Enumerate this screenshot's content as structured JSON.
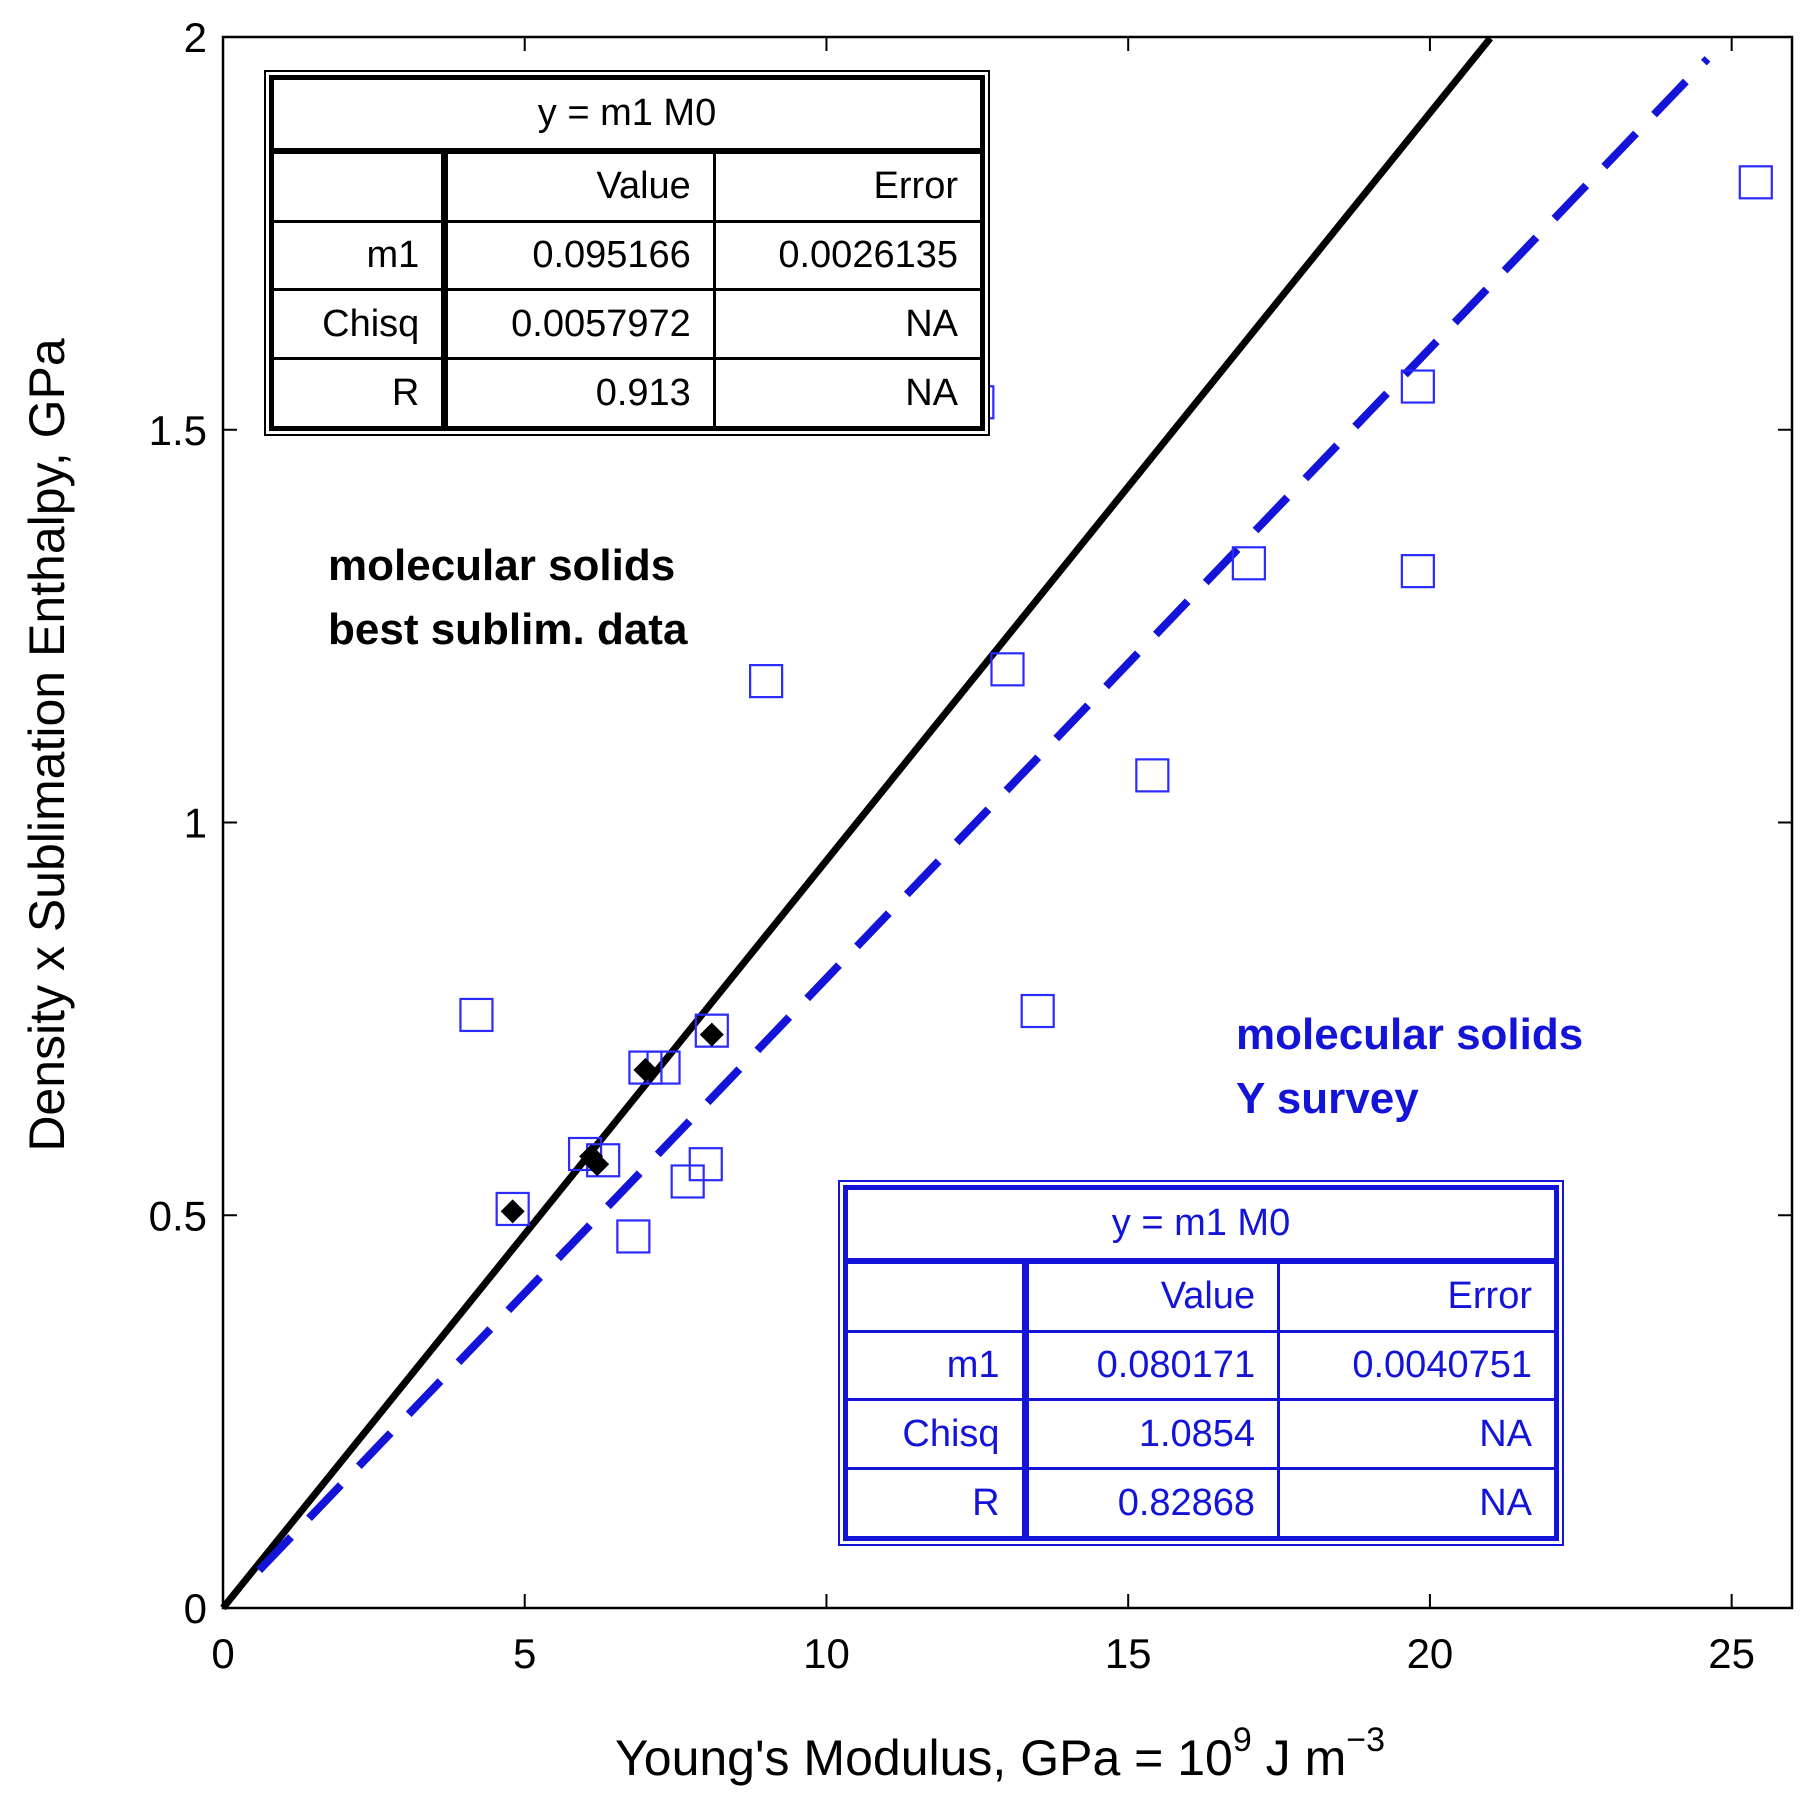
{
  "chart_data": {
    "type": "scatter",
    "xlabel": "Young's Modulus, GPa = 10",
    "xlabel_sup1": "9",
    "xlabel_mid": " J m",
    "xlabel_sup2": "−3",
    "ylabel": "Density x Sublimation Enthalpy, GPa",
    "xlim": [
      0,
      26
    ],
    "ylim": [
      0,
      2
    ],
    "xticks": [
      0,
      5,
      10,
      15,
      20,
      25
    ],
    "xtick_labels": [
      "0",
      "5",
      "10",
      "15",
      "20",
      "25"
    ],
    "yticks": [
      0,
      0.5,
      1,
      1.5,
      2
    ],
    "ytick_labels": [
      "0",
      "0.5",
      "1",
      "1.5",
      "2"
    ],
    "series": [
      {
        "name": "molecular solids best sublim. data",
        "marker": "filled-diamond",
        "color": "#000000",
        "points": [
          [
            4.8,
            0.505
          ],
          [
            6.1,
            0.575
          ],
          [
            6.2,
            0.565
          ],
          [
            7.0,
            0.685
          ],
          [
            8.1,
            0.73
          ]
        ]
      },
      {
        "name": "molecular solids Y survey",
        "marker": "open-square",
        "color": "#2b2bff",
        "points": [
          [
            4.2,
            0.755
          ],
          [
            4.8,
            0.508
          ],
          [
            6.0,
            0.578
          ],
          [
            6.3,
            0.57
          ],
          [
            6.8,
            0.473
          ],
          [
            7.0,
            0.688
          ],
          [
            7.3,
            0.688
          ],
          [
            7.7,
            0.543
          ],
          [
            8.0,
            0.565
          ],
          [
            8.1,
            0.735
          ],
          [
            9.0,
            1.18
          ],
          [
            12.5,
            1.535
          ],
          [
            13.0,
            1.195
          ],
          [
            13.5,
            0.76
          ],
          [
            15.4,
            1.06
          ],
          [
            17.0,
            1.33
          ],
          [
            19.8,
            1.32
          ],
          [
            19.8,
            1.555
          ],
          [
            25.4,
            1.815
          ]
        ]
      }
    ],
    "fit_lines": [
      {
        "name": "best sublim. fit",
        "style": "solid",
        "color": "#000000",
        "slope": 0.095166,
        "x_range": [
          0,
          21.0
        ]
      },
      {
        "name": "Y survey fit",
        "style": "dashed",
        "color": "#1414d8",
        "slope": 0.080171,
        "x_range": [
          0.6,
          24.6
        ]
      }
    ],
    "annotations": [
      {
        "lines": [
          "molecular solids",
          "best sublim. data"
        ],
        "color": "#000000"
      },
      {
        "lines": [
          "molecular solids",
          "Y survey"
        ],
        "color": "#1414d8"
      }
    ]
  },
  "fit_tables": {
    "black": {
      "equation": "y = m1 M0",
      "header": [
        "",
        "Value",
        "Error"
      ],
      "rows": [
        [
          "m1",
          "0.095166",
          "0.0026135"
        ],
        [
          "Chisq",
          "0.0057972",
          "NA"
        ],
        [
          "R",
          "0.913",
          "NA"
        ]
      ]
    },
    "blue": {
      "equation": "y = m1 M0",
      "header": [
        "",
        "Value",
        "Error"
      ],
      "rows": [
        [
          "m1",
          "0.080171",
          "0.0040751"
        ],
        [
          "Chisq",
          "1.0854",
          "NA"
        ],
        [
          "R",
          "0.82868",
          "NA"
        ]
      ]
    }
  },
  "colors": {
    "black_series": "#000000",
    "blue_series": "#2b2bff",
    "blue_text": "#1414d8"
  }
}
